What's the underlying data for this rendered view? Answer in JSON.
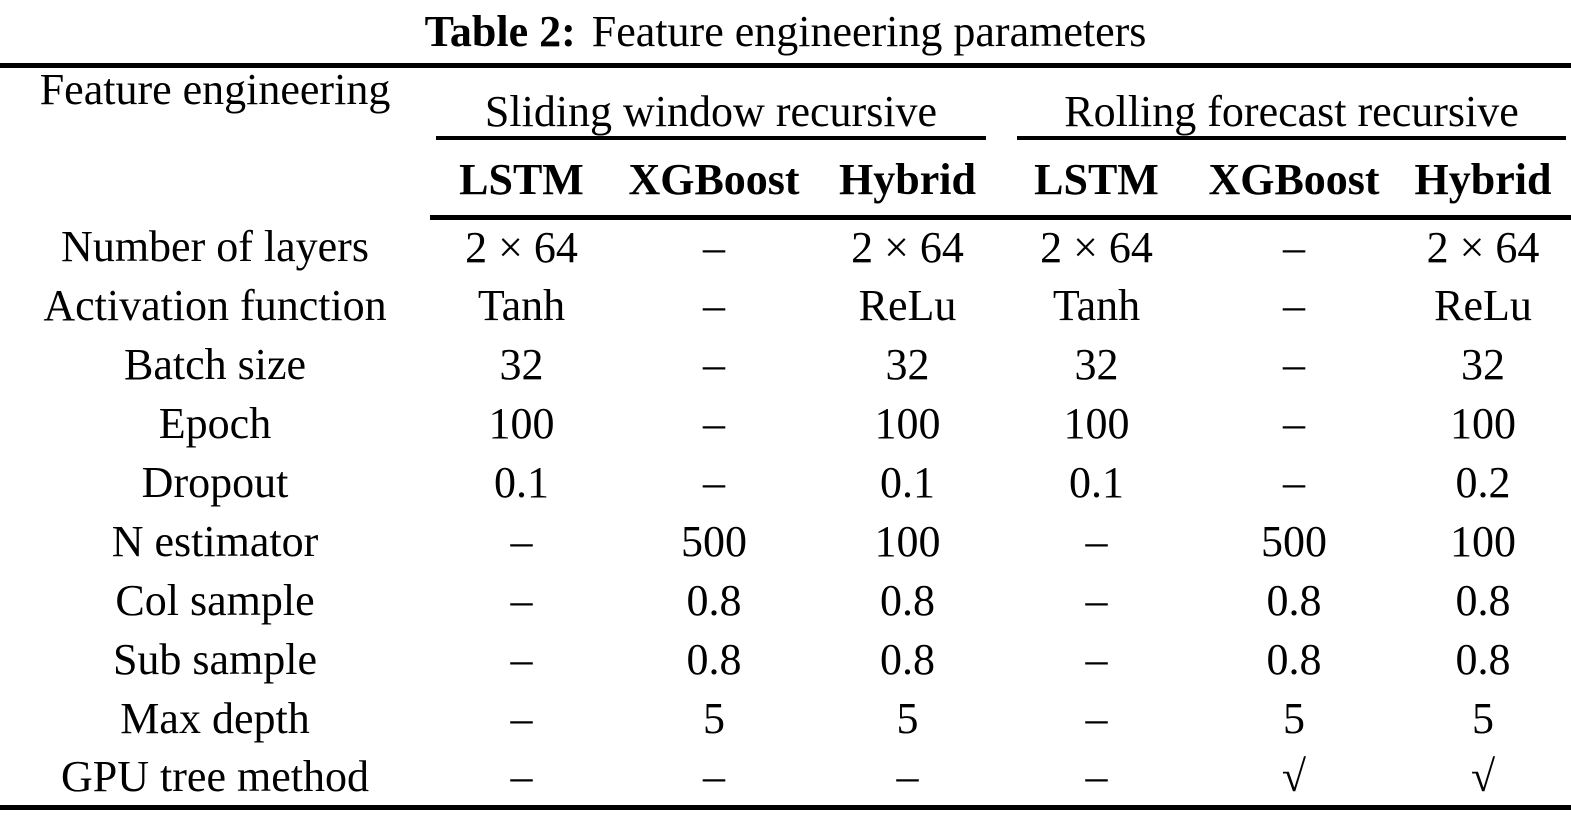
{
  "caption": {
    "label": "Table 2:",
    "text": "Feature engineering parameters"
  },
  "table": {
    "corner_header": "Feature engineering",
    "groups": [
      {
        "label": "Sliding window recursive",
        "columns": [
          "LSTM",
          "XGBoost",
          "Hybrid"
        ]
      },
      {
        "label": "Rolling forecast recursive",
        "columns": [
          "LSTM",
          "XGBoost",
          "Hybrid"
        ]
      }
    ],
    "rows": [
      {
        "label": "Number of layers",
        "values": [
          "2 × 64",
          "–",
          "2 × 64",
          "2 × 64",
          "–",
          "2 × 64"
        ]
      },
      {
        "label": "Activation function",
        "values": [
          "Tanh",
          "–",
          "ReLu",
          "Tanh",
          "–",
          "ReLu"
        ]
      },
      {
        "label": "Batch size",
        "values": [
          "32",
          "–",
          "32",
          "32",
          "–",
          "32"
        ]
      },
      {
        "label": "Epoch",
        "values": [
          "100",
          "–",
          "100",
          "100",
          "–",
          "100"
        ]
      },
      {
        "label": "Dropout",
        "values": [
          "0.1",
          "–",
          "0.1",
          "0.1",
          "–",
          "0.2"
        ]
      },
      {
        "label": "N estimator",
        "values": [
          "–",
          "500",
          "100",
          "–",
          "500",
          "100"
        ]
      },
      {
        "label": "Col sample",
        "values": [
          "–",
          "0.8",
          "0.8",
          "–",
          "0.8",
          "0.8"
        ]
      },
      {
        "label": "Sub sample",
        "values": [
          "–",
          "0.8",
          "0.8",
          "–",
          "0.8",
          "0.8"
        ]
      },
      {
        "label": "Max depth",
        "values": [
          "–",
          "5",
          "5",
          "–",
          "5",
          "5"
        ]
      },
      {
        "label": "GPU tree method",
        "values": [
          "–",
          "–",
          "–",
          "–",
          "√",
          "√"
        ]
      }
    ]
  },
  "colors": {
    "text": "#000000",
    "background": "#ffffff",
    "rule": "#000000"
  }
}
